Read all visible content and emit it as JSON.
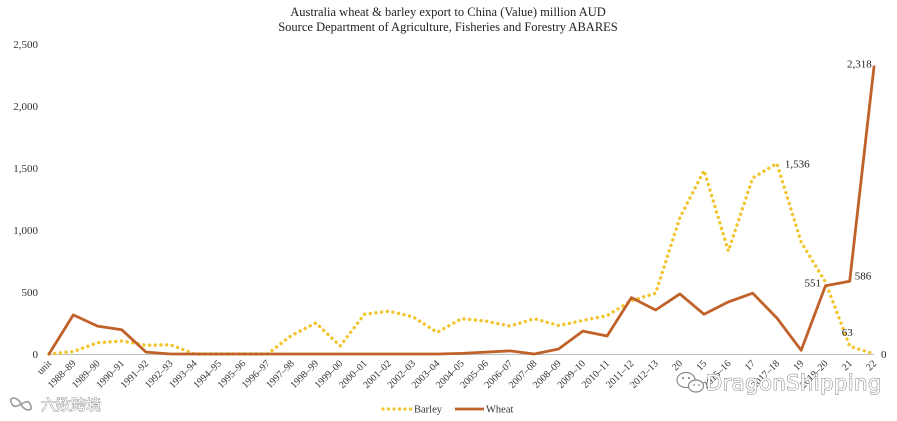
{
  "chart_data": {
    "type": "line",
    "title_line1": "Australia wheat & barley export to China (Value) million AUD",
    "title_line2": "Source Department of Agriculture, Fisheries and Forestry ABARES",
    "xlabel": "",
    "ylabel": "",
    "ylim": [
      0,
      2500
    ],
    "y_ticks": [
      0,
      500,
      1000,
      1500,
      2000,
      2500
    ],
    "y_tick_labels": [
      "0",
      "500",
      "1,000",
      "1,500",
      "2,000",
      "2,500"
    ],
    "grid": false,
    "legend_position": "bottom",
    "categories": [
      "unit",
      "1988–89",
      "1989–90",
      "1990–91",
      "1991–92",
      "1992–93",
      "1993–94",
      "1994–95",
      "1995–96",
      "1996–97",
      "1997–98",
      "1998–99",
      "1999–00",
      "2000–01",
      "2001–02",
      "2002–03",
      "2003–04",
      "2004–05",
      "2005–06",
      "2006–07",
      "2007–08",
      "2008–09",
      "2009–10",
      "2010–11",
      "2011–12",
      "2012–13",
      "2013–14",
      "2014–15",
      "2015–16",
      "2016–17",
      "2017–18",
      "2018–19",
      "2019–20",
      "2020–21",
      "2021–22"
    ],
    "visible_tick_labels": [
      "unit",
      "1988–89",
      "1989–90",
      "1990–91",
      "1991–92",
      "1992–93",
      "1993–94",
      "1994–95",
      "1995–96",
      "1996–97",
      "1997–98",
      "1998–99",
      "1999–00",
      "2000–01",
      "2001–02",
      "2002–03",
      "2003–04",
      "2004–05",
      "2005–06",
      "2006–07",
      "2007–08",
      "2008–09",
      "2009–10",
      "2010–11",
      "2011–12",
      "2012–13",
      "20",
      "15",
      "2015–16",
      "17",
      "2017–18",
      "19",
      "2019–20",
      "21",
      "22"
    ],
    "series": [
      {
        "name": "Barley",
        "color": "#F2C530",
        "style": "dotted",
        "values": [
          0,
          20,
          90,
          105,
          70,
          75,
          0,
          0,
          0,
          0,
          150,
          250,
          65,
          320,
          345,
          300,
          175,
          285,
          265,
          225,
          285,
          230,
          270,
          310,
          430,
          490,
          1100,
          1480,
          830,
          1420,
          1536,
          900,
          580,
          63,
          0
        ]
      },
      {
        "name": "Wheat",
        "color": "#C0612A",
        "style": "solid",
        "values": [
          0,
          315,
          225,
          195,
          15,
          0,
          0,
          0,
          0,
          0,
          0,
          0,
          0,
          0,
          0,
          0,
          0,
          5,
          15,
          25,
          0,
          40,
          185,
          145,
          455,
          355,
          485,
          320,
          420,
          490,
          290,
          30,
          551,
          586,
          2318
        ]
      }
    ],
    "data_labels": [
      {
        "series": "Barley",
        "index": 30,
        "text": "1,536"
      },
      {
        "series": "Barley",
        "index": 33,
        "text": "63"
      },
      {
        "series": "Barley",
        "index": 34,
        "text": "0"
      },
      {
        "series": "Wheat",
        "index": 32,
        "text": "551"
      },
      {
        "series": "Wheat",
        "index": 33,
        "text": "586"
      },
      {
        "series": "Wheat",
        "index": 34,
        "text": "2,318"
      }
    ]
  },
  "legend": {
    "barley_label": "Barley",
    "wheat_label": "Wheat"
  },
  "watermarks": {
    "right_text": "DragonShipping",
    "left_text": "六数跨境"
  }
}
